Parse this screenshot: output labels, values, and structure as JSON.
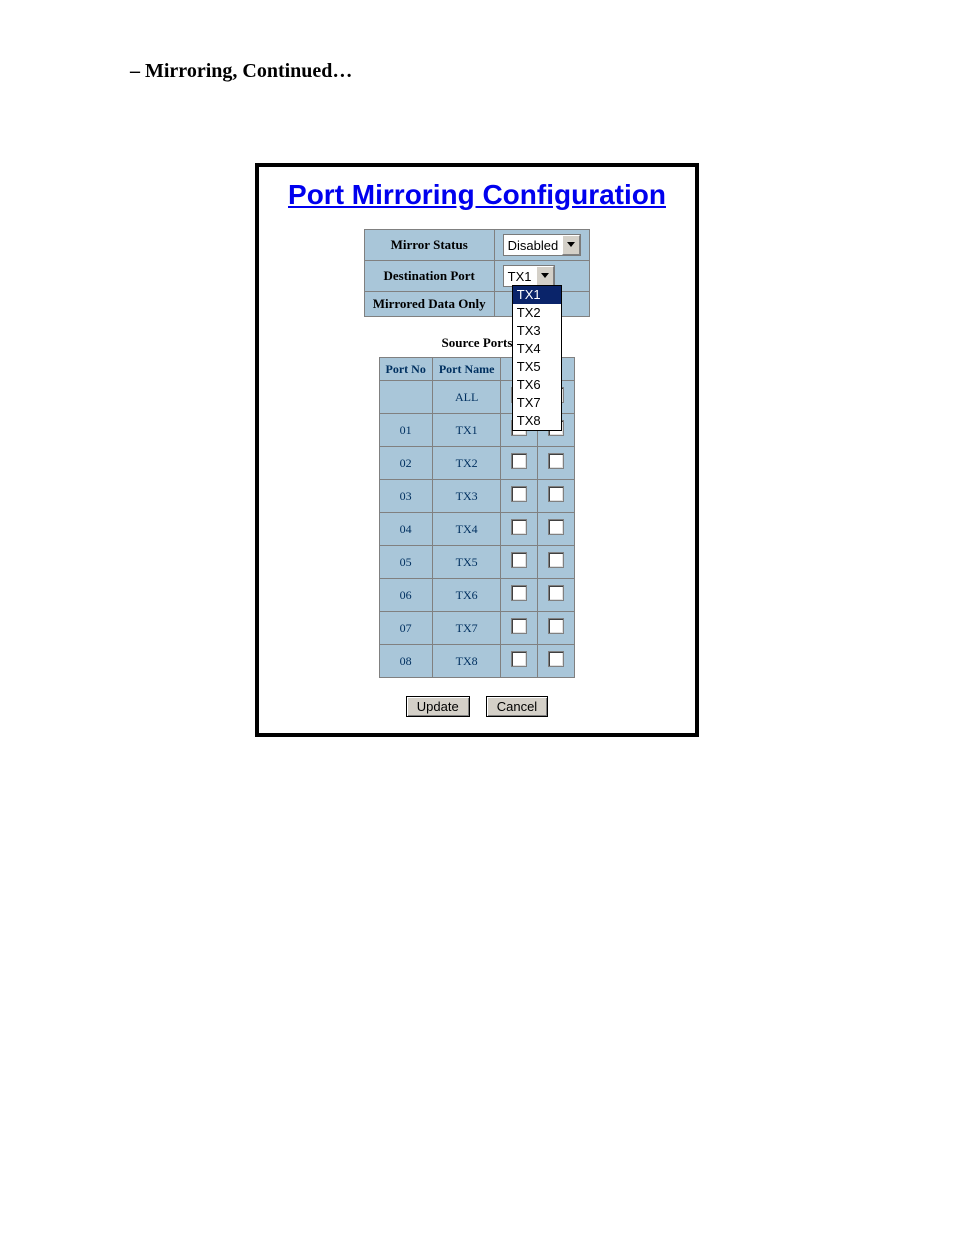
{
  "heading": "– Mirroring, Continued…",
  "panel": {
    "title": "Port Mirroring Configuration",
    "colors": {
      "title_color": "#0000ee",
      "cell_bg": "#a9c6d9",
      "border": "#808080",
      "panel_border": "#000000"
    },
    "config": {
      "mirror_status_label": "Mirror Status",
      "mirror_status_value": "Disabled",
      "destination_port_label": "Destination Port",
      "destination_port_value": "TX1",
      "mirrored_data_only_label": "Mirrored Data Only",
      "dropdown_options": [
        "TX1",
        "TX2",
        "TX3",
        "TX4",
        "TX5",
        "TX6",
        "TX7",
        "TX8"
      ],
      "dropdown_selected": "TX1"
    },
    "source_ports_label": "Source Ports",
    "ports_table": {
      "headers": {
        "port_no": "Port No",
        "port_name": "Port Name"
      },
      "all_label": "ALL",
      "rows": [
        {
          "no": "01",
          "name": "TX1"
        },
        {
          "no": "02",
          "name": "TX2"
        },
        {
          "no": "03",
          "name": "TX3"
        },
        {
          "no": "04",
          "name": "TX4"
        },
        {
          "no": "05",
          "name": "TX5"
        },
        {
          "no": "06",
          "name": "TX6"
        },
        {
          "no": "07",
          "name": "TX7"
        },
        {
          "no": "08",
          "name": "TX8"
        }
      ]
    },
    "buttons": {
      "update": "Update",
      "cancel": "Cancel"
    }
  }
}
